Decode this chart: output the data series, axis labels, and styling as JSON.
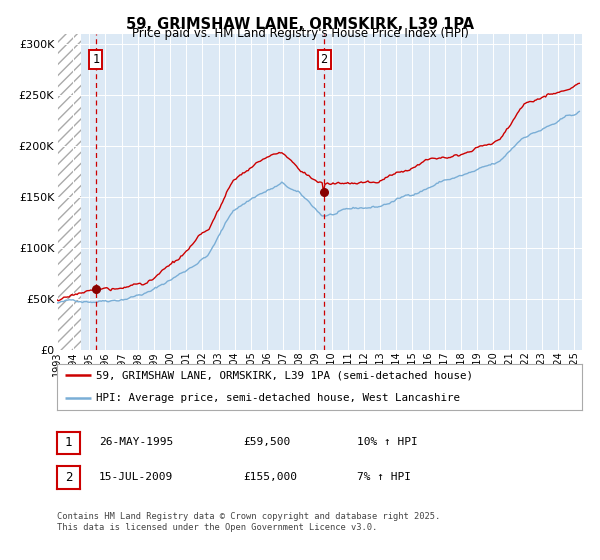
{
  "title": "59, GRIMSHAW LANE, ORMSKIRK, L39 1PA",
  "subtitle": "Price paid vs. HM Land Registry's House Price Index (HPI)",
  "ylim": [
    0,
    310000
  ],
  "yticks": [
    0,
    50000,
    100000,
    150000,
    200000,
    250000,
    300000
  ],
  "ytick_labels": [
    "£0",
    "£50K",
    "£100K",
    "£150K",
    "£200K",
    "£250K",
    "£300K"
  ],
  "sale1_price": 59500,
  "sale2_price": 155000,
  "hpi_line_color": "#7aaed6",
  "price_line_color": "#cc0000",
  "sale_dot_color": "#880000",
  "vline_color": "#cc0000",
  "plot_bg_color": "#dce9f5",
  "legend_line1": "59, GRIMSHAW LANE, ORMSKIRK, L39 1PA (semi-detached house)",
  "legend_line2": "HPI: Average price, semi-detached house, West Lancashire",
  "table_row1": [
    "1",
    "26-MAY-1995",
    "£59,500",
    "10% ↑ HPI"
  ],
  "table_row2": [
    "2",
    "15-JUL-2009",
    "£155,000",
    "7% ↑ HPI"
  ],
  "footnote": "Contains HM Land Registry data © Crown copyright and database right 2025.\nThis data is licensed under the Open Government Licence v3.0."
}
